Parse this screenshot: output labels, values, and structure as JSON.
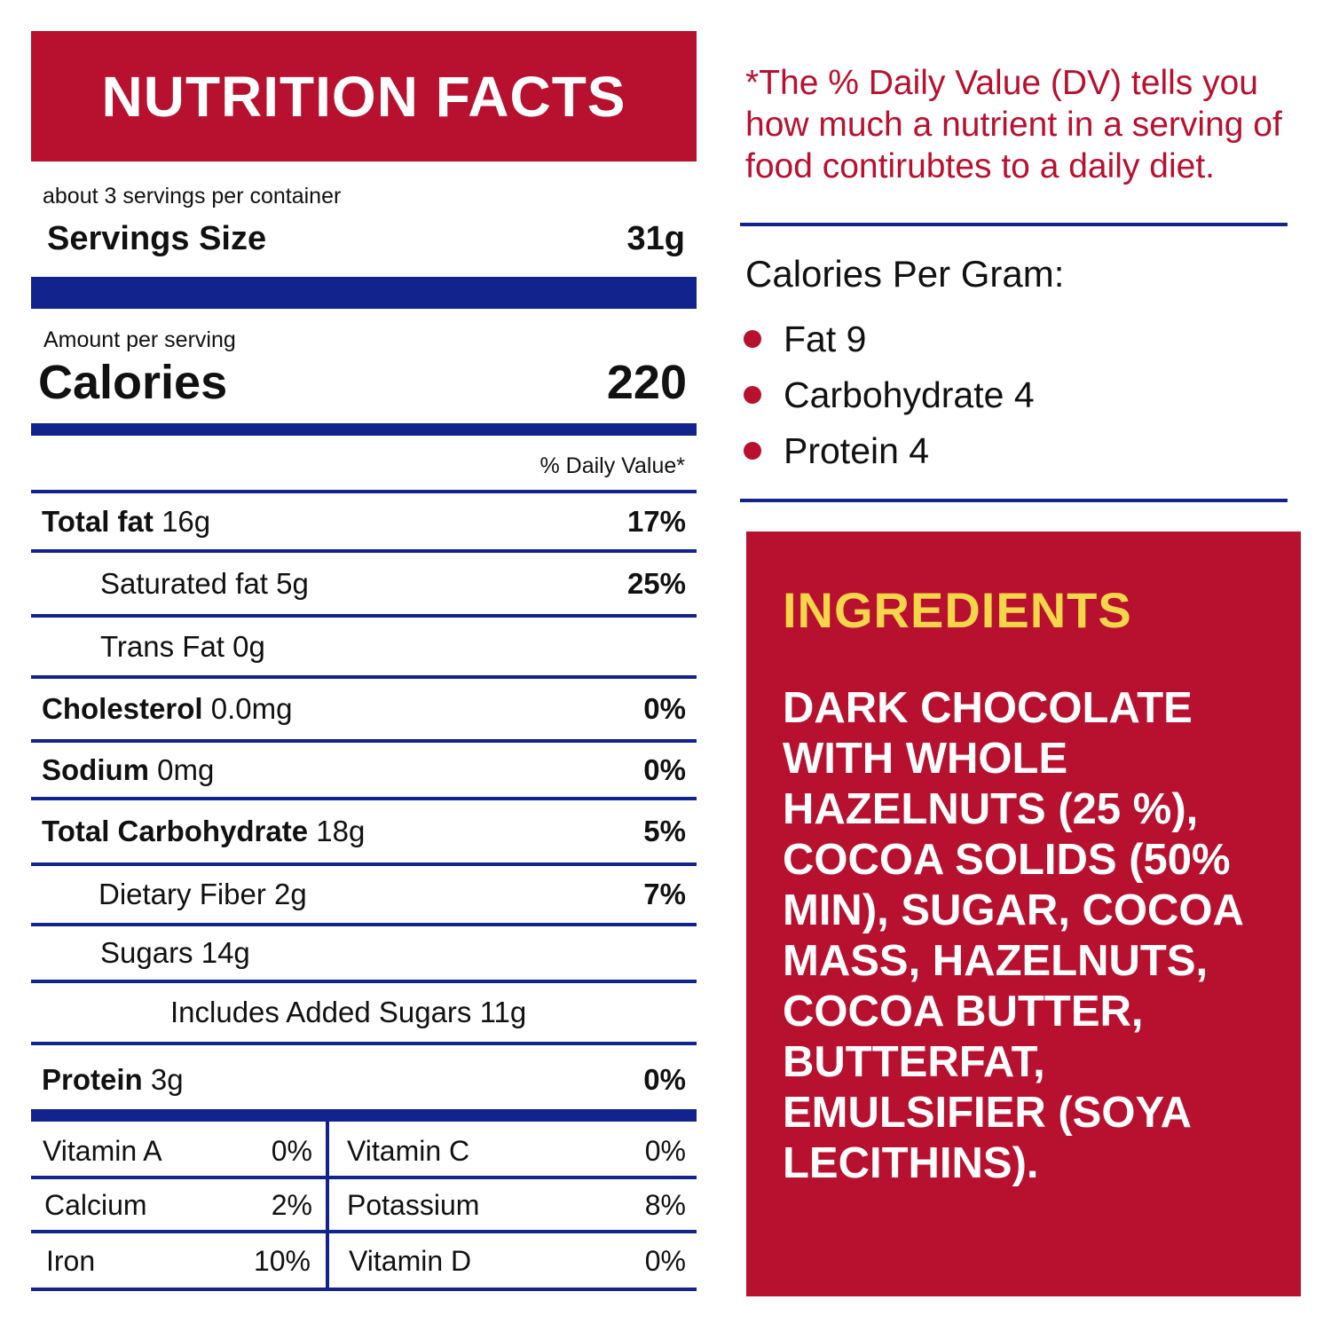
{
  "header": {
    "title": "NUTRITION FACTS"
  },
  "serving": {
    "per_container": "about 3 servings per container",
    "size_label": "Servings Size",
    "size_value": "31g"
  },
  "calories": {
    "amount_label": "Amount per serving",
    "label": "Calories",
    "value": "220"
  },
  "dv_header": "% Daily Value*",
  "nutrients": [
    {
      "name": "Total fat",
      "amount": "16g",
      "dv": "17%"
    },
    {
      "name": "Saturated fat 5g",
      "dv": "25%"
    },
    {
      "name": "Trans Fat 0g",
      "dv": ""
    },
    {
      "name": "Cholesterol",
      "amount": "0.0mg",
      "dv": "0%"
    },
    {
      "name": "Sodium",
      "amount": "0mg",
      "dv": "0%"
    },
    {
      "name": "Total Carbohydrate",
      "amount": "18g",
      "dv": "5%"
    },
    {
      "name": "Dietary Fiber 2g",
      "dv": "7%"
    },
    {
      "name": "Sugars 14g",
      "dv": ""
    },
    {
      "name": "Includes Added Sugars 11g",
      "dv": ""
    },
    {
      "name": "Protein",
      "amount": "3g",
      "dv": "0%"
    }
  ],
  "vitamins": [
    {
      "name": "Vitamin A",
      "value": "0%"
    },
    {
      "name": "Vitamin C",
      "value": "0%"
    },
    {
      "name": "Calcium",
      "value": "2%"
    },
    {
      "name": "Potassium",
      "value": "8%"
    },
    {
      "name": "Iron",
      "value": "10%"
    },
    {
      "name": "Vitamin D",
      "value": "0%"
    }
  ],
  "dv_note": "*The % Daily Value (DV) tells you how much a nutrient in a serving of food contirubtes to a daily diet.",
  "calories_per_gram": {
    "title": "Calories Per Gram:",
    "items": [
      "Fat 9",
      "Carbohydrate 4",
      "Protein 4"
    ]
  },
  "ingredients": {
    "title": "INGREDIENTS",
    "text": "DARK CHOCOLATE WITH WHOLE HAZELNUTS (25 %), COCOA SOLIDS (50% MIN), SUGAR, COCOA MASS, HAZELNUTS, COCOA BUTTER, BUTTERFAT, EMULSIFIER (SOYA LECITHINS)."
  },
  "colors": {
    "red": "#b8102f",
    "navy": "#13238e",
    "yellow": "#f5d54a"
  }
}
